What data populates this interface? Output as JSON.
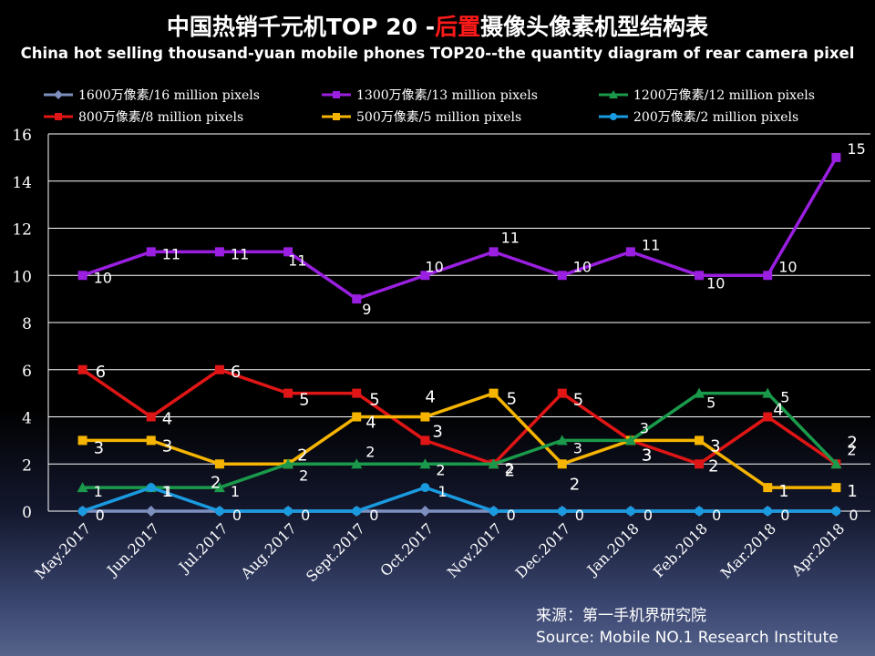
{
  "header": {
    "title_cn_prefix": "中国热销千元机TOP 20 -",
    "title_cn_highlight": "后置",
    "title_cn_suffix": "摄像头像素机型结构表",
    "title_en": "China hot selling thousand-yuan mobile phones TOP20--the quantity diagram of rear camera pixel"
  },
  "source": {
    "cn": "来源：第一手机界研究院",
    "en": "Source: Mobile NO.1 Research Institute"
  },
  "chart_data": {
    "type": "line",
    "categories": [
      "May.2017",
      "Jun.2017",
      "Jul.2017",
      "Aug.2017",
      "Sept.2017",
      "Oct.2017",
      "Nov.2017",
      "Dec.2017",
      "Jan.2018",
      "Feb.2018",
      "Mar.2018",
      "Apr.2018"
    ],
    "ylim": [
      0,
      16
    ],
    "yticks": [
      0,
      2,
      4,
      6,
      8,
      10,
      12,
      14,
      16
    ],
    "grid": true,
    "legend_position": "top",
    "series": [
      {
        "name": "1600万像素/16 million pixels",
        "color": "#7d8fbf",
        "marker": "diamond",
        "values": [
          0,
          0,
          0,
          0,
          0,
          0,
          0,
          0,
          0,
          0,
          0,
          0
        ]
      },
      {
        "name": "1300万像素/13 million pixels",
        "color": "#9a1fe0",
        "marker": "square",
        "values": [
          10,
          11,
          11,
          11,
          9,
          10,
          11,
          10,
          11,
          10,
          10,
          15
        ]
      },
      {
        "name": "1200万像素/12 million pixels",
        "color": "#1a9a4a",
        "marker": "triangle",
        "values": [
          1,
          1,
          1,
          2,
          2,
          2,
          2,
          3,
          3,
          5,
          5,
          2
        ]
      },
      {
        "name": "800万像素/8 million pixels",
        "color": "#e01515",
        "marker": "square",
        "values": [
          6,
          4,
          6,
          5,
          5,
          3,
          2,
          5,
          3,
          2,
          4,
          2
        ]
      },
      {
        "name": "500万像素/5 million pixels",
        "color": "#f5b400",
        "marker": "square",
        "values": [
          3,
          3,
          2,
          2,
          4,
          4,
          5,
          2,
          3,
          3,
          1,
          1
        ]
      },
      {
        "name": "200万像素/2 million pixels",
        "color": "#1a9be0",
        "marker": "circle",
        "values": [
          0,
          1,
          0,
          0,
          0,
          1,
          0,
          0,
          0,
          0,
          0,
          0
        ]
      }
    ]
  }
}
